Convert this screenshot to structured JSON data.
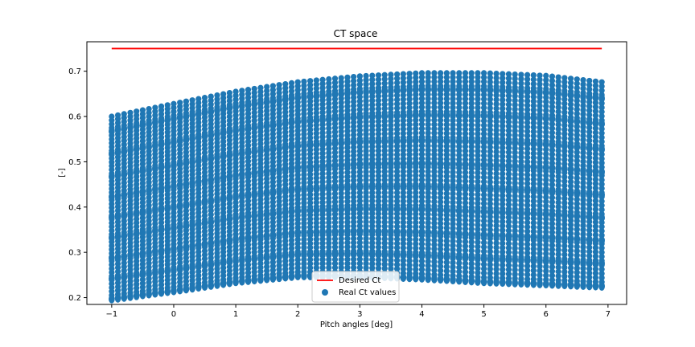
{
  "chart_data": {
    "type": "scatter",
    "title": "CT space",
    "xlabel": "Pitch angles [deg]",
    "ylabel": "[-]",
    "xlim": [
      -1.4,
      7.3
    ],
    "ylim": [
      0.185,
      0.765
    ],
    "xticks": [
      "−1",
      "0",
      "1",
      "2",
      "3",
      "4",
      "5",
      "6",
      "7"
    ],
    "xtick_values": [
      -1,
      0,
      1,
      2,
      3,
      4,
      5,
      6,
      7
    ],
    "yticks": [
      "0.2",
      "0.3",
      "0.4",
      "0.5",
      "0.6",
      "0.7"
    ],
    "ytick_values": [
      0.2,
      0.3,
      0.4,
      0.5,
      0.6,
      0.7
    ],
    "grid": false,
    "legend_position": "lower-center",
    "series": [
      {
        "name": "Desired Ct",
        "kind": "line",
        "color": "#ff0000",
        "x": [
          -1,
          6.9
        ],
        "y": [
          0.75,
          0.75
        ]
      },
      {
        "name": "Real Ct values",
        "kind": "scatter",
        "color": "#1f77b4",
        "x_range": [
          -1,
          6.9
        ],
        "x_step": 0.1,
        "lower_envelope": [
          [
            -1,
            0.197
          ],
          [
            0,
            0.215
          ],
          [
            1,
            0.235
          ],
          [
            2,
            0.248
          ],
          [
            3,
            0.248
          ],
          [
            4,
            0.243
          ],
          [
            5,
            0.235
          ],
          [
            6,
            0.23
          ],
          [
            6.9,
            0.225
          ]
        ],
        "upper_envelope": [
          [
            -1,
            0.6
          ],
          [
            0,
            0.628
          ],
          [
            1,
            0.655
          ],
          [
            2,
            0.676
          ],
          [
            3,
            0.689
          ],
          [
            4,
            0.696
          ],
          [
            5,
            0.696
          ],
          [
            6,
            0.69
          ],
          [
            6.9,
            0.676
          ]
        ],
        "band_levels": [
          0.23,
          0.275,
          0.32,
          0.365,
          0.41,
          0.455,
          0.5,
          0.55,
          0.6,
          0.64
        ]
      }
    ]
  }
}
